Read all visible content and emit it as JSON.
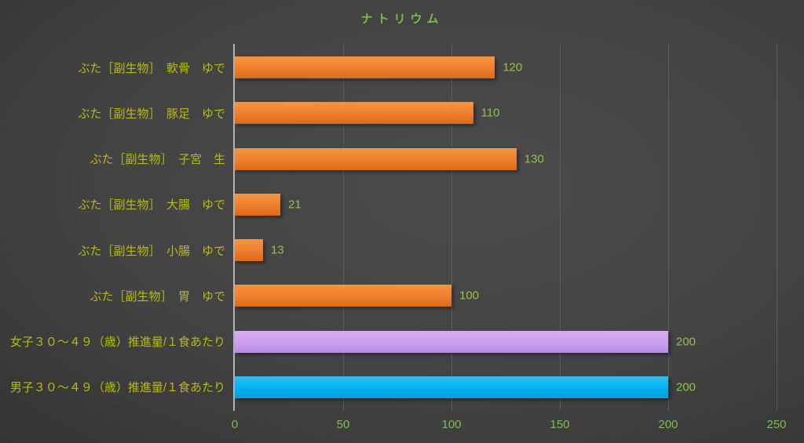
{
  "chart_data": {
    "type": "bar",
    "orientation": "horizontal",
    "title": "ナトリウム",
    "categories": [
      "ぶた［副生物］　軟骨　ゆで",
      "ぶた［副生物］　豚足　ゆで",
      "ぶた［副生物］　子宮　生",
      "ぶた［副生物］　大腸　ゆで",
      "ぶた［副生物］　小腸　ゆで",
      "ぶた［副生物］　胃　ゆで",
      "女子３０～４９（歳）推進量/１食あたり",
      "男子３０～４９（歳）推進量/１食あたり"
    ],
    "values": [
      120,
      110,
      130,
      21,
      13,
      100,
      200,
      200
    ],
    "value_labels": [
      "120",
      "110",
      "130",
      "21",
      "13",
      "100",
      "200",
      "200"
    ],
    "bar_colors": [
      "orange",
      "orange",
      "orange",
      "orange",
      "orange",
      "orange",
      "purple",
      "cyan"
    ],
    "x_ticks": [
      0,
      50,
      100,
      150,
      200,
      250
    ],
    "xlim": [
      0,
      250
    ],
    "xlabel": "",
    "ylabel": "",
    "grid": true,
    "legend": "none",
    "colors": {
      "orange_bar": "#ed7d31",
      "purple_bar": "#c99ef0",
      "cyan_bar": "#00b0f0",
      "title_text": "#77bc44",
      "category_text": "#b9ba10",
      "value_text": "#8cc449",
      "tick_text": "#7fbf4f",
      "background": "#434343",
      "gridline": "#5c5c5c",
      "axis_line": "#b3b3b3"
    }
  }
}
